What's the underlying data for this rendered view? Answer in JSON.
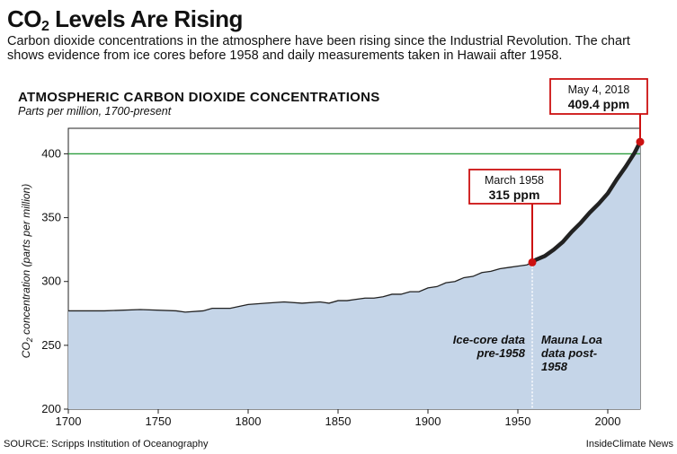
{
  "header": {
    "title_main": "CO",
    "title_sub": "2",
    "title_rest": " Levels Are Rising",
    "intro": "Carbon dioxide concentrations in the atmosphere have been rising since the Industrial Revolution. The chart shows evidence from ice cores before 1958 and daily measurements taken in Hawaii after 1958."
  },
  "footer": {
    "source": "SOURCE: Scripps Institution of Oceanography",
    "credit": "InsideClimate News"
  },
  "colors": {
    "area_fill": "#c5d5e8",
    "line": "#222222",
    "reference_line": "#2e9e3f",
    "callout": "#cc1111"
  },
  "chart_data": {
    "type": "area",
    "title": "ATMOSPHERIC CARBON DIOXIDE CONCENTRATIONS",
    "subtitle": "Parts per million, 1700-present",
    "ylabel_main": "CO",
    "ylabel_sub": "2",
    "ylabel_rest": " concentration (parts per million)",
    "xlim": [
      1700,
      2018
    ],
    "ylim": [
      200,
      420
    ],
    "x_ticks": [
      1700,
      1750,
      1800,
      1850,
      1900,
      1950,
      2000
    ],
    "y_ticks": [
      200,
      250,
      300,
      350,
      400
    ],
    "reference_line": 400,
    "ice_core": {
      "label_line1": "Ice-core data",
      "label_line2": "pre-1958",
      "x": [
        1700,
        1720,
        1740,
        1760,
        1765,
        1775,
        1780,
        1790,
        1800,
        1810,
        1820,
        1830,
        1840,
        1845,
        1850,
        1855,
        1860,
        1865,
        1870,
        1875,
        1880,
        1885,
        1890,
        1895,
        1900,
        1905,
        1910,
        1915,
        1920,
        1925,
        1930,
        1935,
        1940,
        1945,
        1950,
        1955,
        1958
      ],
      "y": [
        277,
        277,
        278,
        277,
        276,
        277,
        279,
        279,
        282,
        283,
        284,
        283,
        284,
        283,
        285,
        285,
        286,
        287,
        287,
        288,
        290,
        290,
        292,
        292,
        295,
        296,
        299,
        300,
        303,
        304,
        307,
        308,
        310,
        311,
        312,
        313,
        315
      ]
    },
    "mauna_loa": {
      "label_line1": "Mauna Loa",
      "label_line2": "data post-",
      "label_line3": "1958",
      "x": [
        1958,
        1960,
        1965,
        1970,
        1975,
        1980,
        1985,
        1990,
        1995,
        2000,
        2005,
        2010,
        2015,
        2018
      ],
      "y": [
        315,
        317,
        320,
        325,
        331,
        339,
        346,
        354,
        361,
        369,
        380,
        390,
        401,
        409.4
      ]
    },
    "annotations": [
      {
        "date": "March 1958",
        "value_label": "315 ppm",
        "x": 1958,
        "y": 315
      },
      {
        "date": "May 4, 2018",
        "value_label": "409.4 ppm",
        "x": 2018,
        "y": 409.4
      }
    ]
  }
}
